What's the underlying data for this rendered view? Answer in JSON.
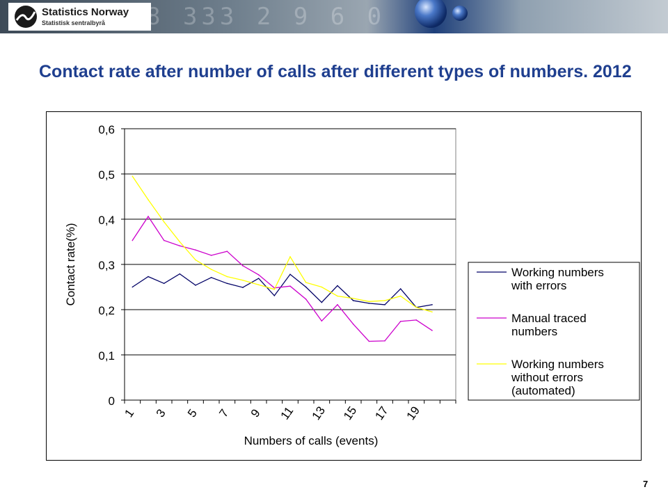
{
  "header": {
    "logo_name": "Statistics Norway",
    "logo_subtitle": "Statistisk sentralbyrå",
    "logo_icon": "ssb-swoosh-icon"
  },
  "slide": {
    "title": "Contact rate after number of calls after different types of numbers. 2012",
    "page_number": "7"
  },
  "colors": {
    "title": "#1f3f8f",
    "series_working_with_errors": "#000066",
    "series_manual_traced": "#cc00cc",
    "series_without_errors": "#ffff00"
  },
  "chart_data": {
    "type": "line",
    "xlabel": "Numbers of calls (events)",
    "ylabel": "Contact rate(%)",
    "ylim": [
      0,
      0.6
    ],
    "y_ticks": [
      "0",
      "0,1",
      "0,2",
      "0,3",
      "0,4",
      "0,5",
      "0,6"
    ],
    "x": [
      1,
      2,
      3,
      4,
      5,
      6,
      7,
      8,
      9,
      10,
      11,
      12,
      13,
      14,
      15,
      16,
      17,
      18,
      19,
      20,
      21
    ],
    "x_tick_labels": [
      "1",
      "3",
      "5",
      "7",
      "9",
      "11",
      "13",
      "15",
      "17",
      "19"
    ],
    "grid": "horizontal",
    "legend_position": "right",
    "series": [
      {
        "name": "Working numbers with errors",
        "color": "#000066",
        "values": [
          0.25,
          0.273,
          0.258,
          0.279,
          0.254,
          0.271,
          0.258,
          0.249,
          0.269,
          0.231,
          0.278,
          0.25,
          0.216,
          0.253,
          0.22,
          0.214,
          0.211,
          0.246,
          0.205,
          0.211,
          null
        ]
      },
      {
        "name": "Manual traced numbers",
        "color": "#cc00cc",
        "values": [
          0.353,
          0.406,
          0.353,
          0.341,
          0.332,
          0.32,
          0.329,
          0.297,
          0.277,
          0.248,
          0.252,
          0.223,
          0.175,
          0.211,
          0.168,
          0.13,
          0.131,
          0.174,
          0.177,
          0.154,
          null
        ]
      },
      {
        "name": "Working numbers without errors (automated)",
        "color": "#ffff00",
        "values": [
          0.495,
          0.443,
          0.394,
          0.35,
          0.31,
          0.289,
          0.273,
          0.265,
          0.255,
          0.245,
          0.317,
          0.26,
          0.25,
          0.23,
          0.225,
          0.218,
          0.22,
          0.23,
          0.205,
          0.195,
          null
        ]
      }
    ],
    "legend_lines": [
      [
        "Working numbers",
        "with errors"
      ],
      [
        "Manual traced",
        "numbers"
      ],
      [
        "Working numbers",
        "without errors",
        "(automated)"
      ]
    ]
  }
}
